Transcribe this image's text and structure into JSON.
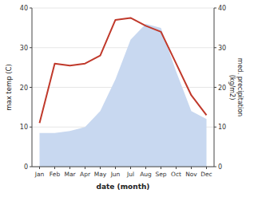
{
  "chart_data": {
    "type": "line",
    "categories": [
      "Jan",
      "Feb",
      "Mar",
      "Apr",
      "May",
      "Jun",
      "Jul",
      "Aug",
      "Sep",
      "Oct",
      "Nov",
      "Dec"
    ],
    "xlabel": "date (month)",
    "ylabel": "max temp (C)",
    "y2label": "med. precipitation\n(kg/m2)",
    "series": [
      {
        "type": "area",
        "axis": "y2",
        "color": "#c8d8f0",
        "values": [
          8.5,
          8.5,
          9,
          10,
          14,
          22,
          32,
          36,
          35,
          24,
          14,
          12
        ]
      },
      {
        "type": "line",
        "color": "#c0392b",
        "values": [
          11,
          26,
          25.5,
          26,
          28,
          37,
          37.5,
          35.5,
          34,
          26,
          18,
          13
        ]
      }
    ],
    "ylim": [
      0,
      40
    ],
    "yticks": [
      0,
      10,
      20,
      30,
      40
    ],
    "y2lim": [
      0,
      40
    ],
    "y2ticks": [
      0,
      10,
      20,
      30,
      40
    ],
    "grid": true
  }
}
